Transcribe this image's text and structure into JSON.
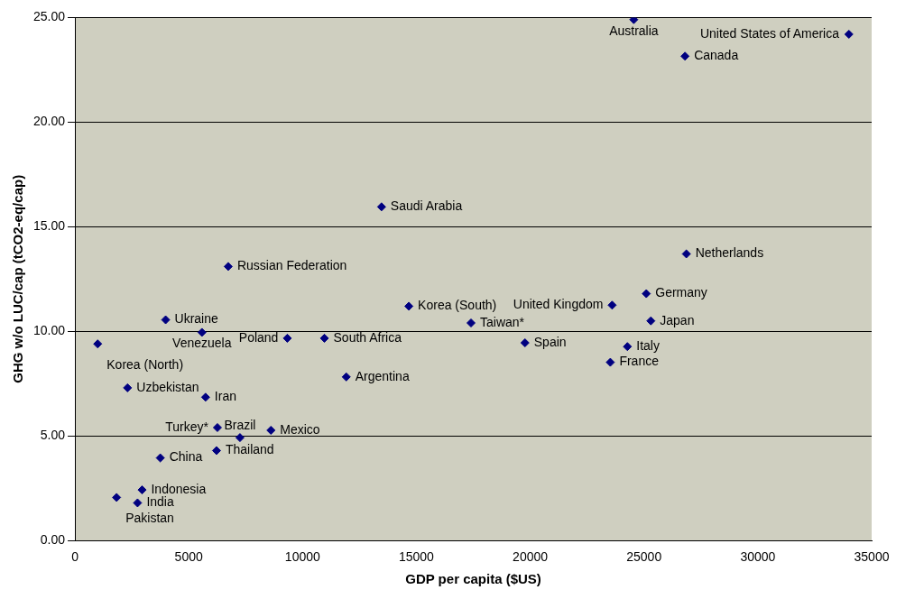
{
  "chart_data": {
    "type": "scatter",
    "xlabel": "GDP per capita ($US)",
    "ylabel": "GHG w/o LUC/cap (tCO2-eq/cap)",
    "x": [
      24550,
      34000,
      26800,
      13470,
      26860,
      6735,
      25100,
      14670,
      23600,
      3985,
      25300,
      17400,
      5580,
      1000,
      9330,
      10960,
      19770,
      24270,
      23520,
      11920,
      2310,
      5740,
      6260,
      8610,
      7250,
      6220,
      3750,
      2950,
      1830,
      2750
    ],
    "series": [
      {
        "color": "#000080",
        "values": [
          24.9,
          24.2,
          23.15,
          15.95,
          13.7,
          13.1,
          11.8,
          11.2,
          11.25,
          10.55,
          10.5,
          10.4,
          9.95,
          9.4,
          9.67,
          9.67,
          9.45,
          9.27,
          8.52,
          7.82,
          7.3,
          6.85,
          5.4,
          5.27,
          4.92,
          4.3,
          3.95,
          2.42,
          2.06,
          1.8
        ]
      }
    ],
    "annotations": [
      {
        "text": "Australia",
        "x": 24550,
        "y": 24.9
      },
      {
        "text": "United States of America",
        "x": 34000,
        "y": 24.2
      },
      {
        "text": "Canada",
        "x": 26800,
        "y": 23.15
      },
      {
        "text": "Saudi Arabia",
        "x": 13470,
        "y": 15.95
      },
      {
        "text": "Netherlands",
        "x": 26860,
        "y": 13.7
      },
      {
        "text": "Russian Federation",
        "x": 6735,
        "y": 13.1
      },
      {
        "text": "Germany",
        "x": 25100,
        "y": 11.8
      },
      {
        "text": "Korea (South)",
        "x": 14670,
        "y": 11.2
      },
      {
        "text": "United Kingdom",
        "x": 23600,
        "y": 11.25
      },
      {
        "text": "Ukraine",
        "x": 3985,
        "y": 10.55
      },
      {
        "text": "Japan",
        "x": 25300,
        "y": 10.5
      },
      {
        "text": "Taiwan*",
        "x": 17400,
        "y": 10.4
      },
      {
        "text": "Venezuela",
        "x": 5580,
        "y": 9.95
      },
      {
        "text": "Korea (North)",
        "x": 1000,
        "y": 9.4
      },
      {
        "text": "Poland",
        "x": 9330,
        "y": 9.67
      },
      {
        "text": "South Africa",
        "x": 10960,
        "y": 9.67
      },
      {
        "text": "Spain",
        "x": 19770,
        "y": 9.45
      },
      {
        "text": "Italy",
        "x": 24270,
        "y": 9.27
      },
      {
        "text": "France",
        "x": 23520,
        "y": 8.52
      },
      {
        "text": "Argentina",
        "x": 11920,
        "y": 7.82
      },
      {
        "text": "Uzbekistan",
        "x": 2310,
        "y": 7.3
      },
      {
        "text": "Iran",
        "x": 5740,
        "y": 6.85
      },
      {
        "text": "Turkey*",
        "x": 6260,
        "y": 5.4
      },
      {
        "text": "Mexico",
        "x": 8610,
        "y": 5.27
      },
      {
        "text": "Brazil",
        "x": 7250,
        "y": 4.92
      },
      {
        "text": "Thailand",
        "x": 6220,
        "y": 4.3
      },
      {
        "text": "China",
        "x": 3750,
        "y": 3.95
      },
      {
        "text": "Indonesia",
        "x": 2950,
        "y": 2.42
      },
      {
        "text": "Pakistan",
        "x": 1830,
        "y": 2.06
      },
      {
        "text": "India",
        "x": 2750,
        "y": 1.8
      }
    ],
    "xlim": [
      0,
      35000
    ],
    "xticks": [
      0,
      5000,
      10000,
      15000,
      20000,
      25000,
      30000,
      35000
    ],
    "ylim": [
      0,
      25
    ],
    "yticks": [
      {
        "value": 0,
        "label": "0.00"
      },
      {
        "value": 5,
        "label": "5.00"
      },
      {
        "value": 10,
        "label": "10.00"
      },
      {
        "value": 15,
        "label": "15.00"
      },
      {
        "value": 20,
        "label": "20.00"
      },
      {
        "value": 25,
        "label": "25.00"
      }
    ],
    "grid": "y",
    "legend": false,
    "marker": "diamond"
  }
}
